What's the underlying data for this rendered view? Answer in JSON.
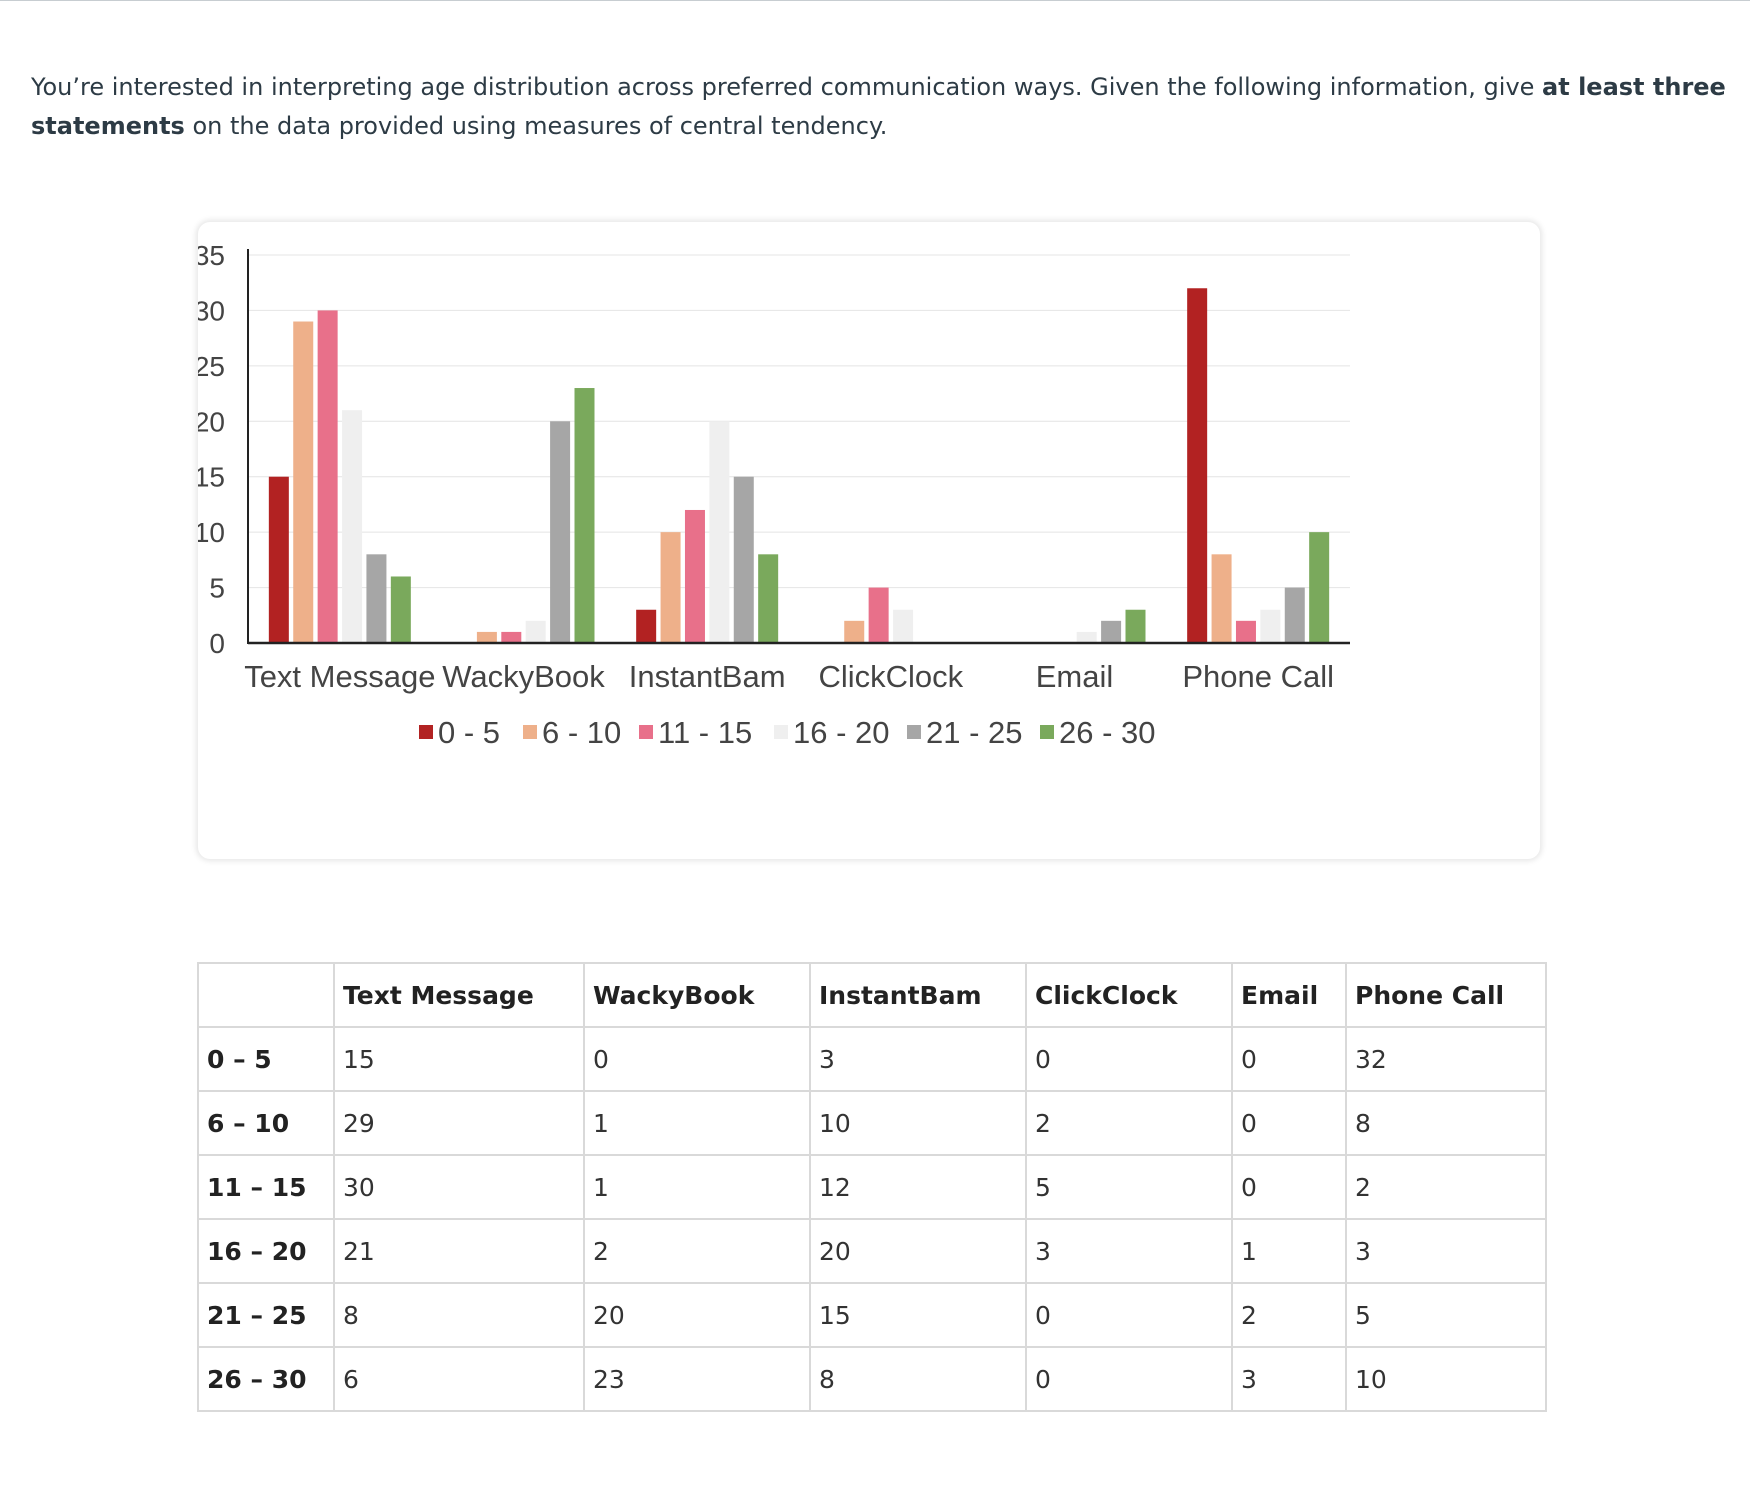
{
  "prompt": {
    "text_before": "You’re interested in interpreting age distribution across preferred communication ways. Given the following information, give ",
    "bold": "at least three statements",
    "text_after": " on the data provided using measures of central tendency."
  },
  "chart_data": {
    "type": "bar",
    "title": "",
    "xlabel": "",
    "ylabel": "",
    "ylim": [
      0,
      35
    ],
    "yticks": [
      0,
      5,
      10,
      15,
      20,
      25,
      30,
      35
    ],
    "grid": true,
    "legend_position": "bottom",
    "categories": [
      "Text Message",
      "WackyBook",
      "InstantBam",
      "ClickClock",
      "Email",
      "Phone Call"
    ],
    "series": [
      {
        "name": "0 - 5",
        "color": "#b22222",
        "values": [
          15,
          0,
          3,
          0,
          0,
          32
        ]
      },
      {
        "name": "6 - 10",
        "color": "#eeb08a",
        "values": [
          29,
          1,
          10,
          2,
          0,
          8
        ]
      },
      {
        "name": "11 - 15",
        "color": "#e8708a",
        "values": [
          30,
          1,
          12,
          5,
          0,
          2
        ]
      },
      {
        "name": "16 - 20",
        "color": "#efefef",
        "values": [
          21,
          2,
          20,
          3,
          1,
          3
        ]
      },
      {
        "name": "21 - 25",
        "color": "#a6a6a6",
        "values": [
          8,
          20,
          15,
          0,
          2,
          5
        ]
      },
      {
        "name": "26 - 30",
        "color": "#7aa95c",
        "values": [
          6,
          23,
          8,
          0,
          3,
          10
        ]
      }
    ]
  },
  "table": {
    "headers": [
      "",
      "Text Message",
      "WackyBook",
      "InstantBam",
      "ClickClock",
      "Email",
      "Phone Call"
    ],
    "rows": [
      {
        "label": "0 – 5",
        "cells": [
          "15",
          "0",
          "3",
          "0",
          "0",
          "32"
        ]
      },
      {
        "label": "6 – 10",
        "cells": [
          "29",
          "1",
          "10",
          "2",
          "0",
          "8"
        ]
      },
      {
        "label": "11 – 15",
        "cells": [
          "30",
          "1",
          "12",
          "5",
          "0",
          "2"
        ]
      },
      {
        "label": "16 – 20",
        "cells": [
          "21",
          "2",
          "20",
          "3",
          "1",
          "3"
        ]
      },
      {
        "label": "21 – 25",
        "cells": [
          "8",
          "20",
          "15",
          "0",
          "2",
          "5"
        ]
      },
      {
        "label": "26 – 30",
        "cells": [
          "6",
          "23",
          "8",
          "0",
          "3",
          "10"
        ]
      }
    ]
  }
}
